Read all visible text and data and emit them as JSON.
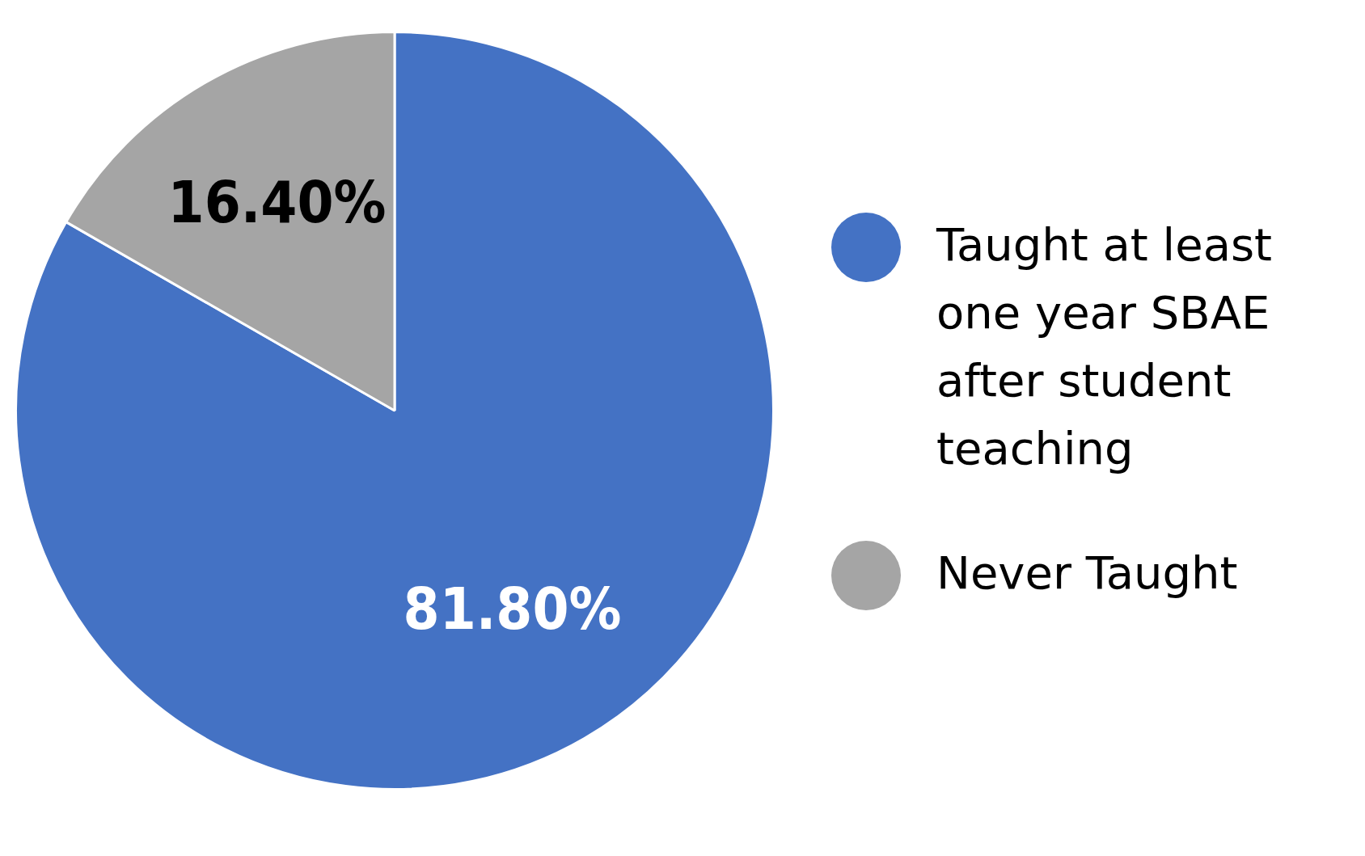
{
  "chart_data": {
    "type": "pie",
    "categories": [
      "Taught at least one year SBAE after student teaching",
      "Never Taught"
    ],
    "values": [
      81.8,
      16.4
    ],
    "colors": [
      "#4472c4",
      "#a5a5a5"
    ],
    "value_labels": [
      "81.80%",
      "16.40%"
    ],
    "legend": "right"
  }
}
